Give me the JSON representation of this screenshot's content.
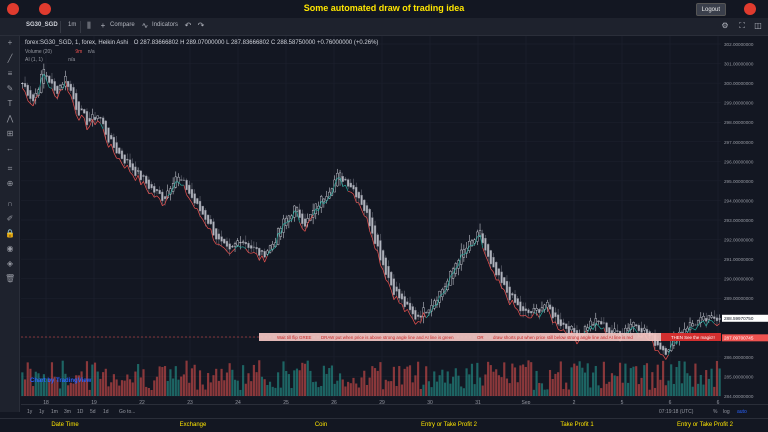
{
  "header": {
    "title": "Some automated draw of trading idea",
    "logout_label": "Logout"
  },
  "toolbar": {
    "symbol": "SG30_SGD",
    "interval": "1m",
    "compare_label": "Compare",
    "indicators_label": "Indicators"
  },
  "legend": {
    "title": "forex:SG30_SGD, 1, forex, Heikin Ashi",
    "o": "O 287.83666802",
    "h": "H 289.07000000",
    "l": "L 287.83666802",
    "c": "C 288.58750000",
    "chg": "+0.76000000 (+0.26%)",
    "volume": "Volume (20)",
    "volume_vals": "n/a",
    "volume_n": "9m",
    "ai": "AI (1, 1)",
    "ai_vals": "n/a"
  },
  "annotation": {
    "text1": "Wait till flip GREE",
    "text2": "DRAW put when price is above strong angle line and AI line is green",
    "text3": "OR",
    "text4": "draw shorts put when price still below strong angle line and AI line is red",
    "magic": "THEN See the magic!!"
  },
  "watermark": "Chart by TradingView",
  "price_axis": [
    "302.00000000",
    "301.00000000",
    "300.00000000",
    "299.00000000",
    "298.00000000",
    "297.00000000",
    "296.00000000",
    "295.00000000",
    "294.00000000",
    "293.00000000",
    "292.00000000",
    "291.00000000",
    "290.00000000",
    "289.00000000",
    "288.59970750",
    "287.09700745",
    "286.00000000",
    "285.00000000",
    "284.00000000"
  ],
  "price_current": "288.59970750",
  "price_red": "287.09700745",
  "time_axis": [
    "18",
    "19",
    "22",
    "23",
    "24",
    "25",
    "26",
    "29",
    "30",
    "31",
    "Sep",
    "2",
    "5",
    "6",
    "6"
  ],
  "range_buttons": [
    "1y",
    "1y",
    "1m",
    "3m",
    "1D",
    "5d",
    "1d",
    "Go to..."
  ],
  "clock": "07:19:18 (UTC)",
  "scale_labels": [
    "%",
    "log",
    "auto"
  ],
  "footer": [
    "Date Time",
    "Exchange",
    "Coin",
    "Entry or Take Profit 2",
    "Take Profit 1",
    "Entry or Take Profit 2"
  ],
  "colors": {
    "up": "#26a69a",
    "down": "#ef5350",
    "title": "#ffe600",
    "bg": "#131722"
  },
  "chart_data": {
    "type": "candlestick",
    "series_up_color": "#26a69a",
    "series_down_color": "#ef5350",
    "ylim": [
      284.5,
      302.5
    ],
    "closes": [
      300.5,
      299.6,
      301.2,
      300.0,
      300.8,
      299.2,
      298.5,
      298.9,
      297.5,
      296.8,
      296.2,
      295.6,
      295.0,
      294.6,
      295.8,
      295.2,
      294.2,
      293.5,
      292.4,
      291.8,
      292.6,
      292.1,
      291.7,
      292.3,
      293.4,
      294.1,
      293.3,
      294.2,
      295.0,
      295.8,
      295.4,
      294.6,
      293.2,
      291.4,
      290.0,
      289.2,
      288.5,
      288.9,
      289.6,
      290.3,
      291.6,
      292.2,
      292.8,
      291.1,
      290.2,
      289.4,
      288.7,
      288.8,
      289.2,
      288.4,
      288.0,
      287.6,
      288.2,
      288.3,
      287.7,
      287.8,
      288.3,
      287.9,
      287.3,
      286.8,
      287.6,
      288.1,
      288.3,
      288.4,
      288.6
    ]
  }
}
